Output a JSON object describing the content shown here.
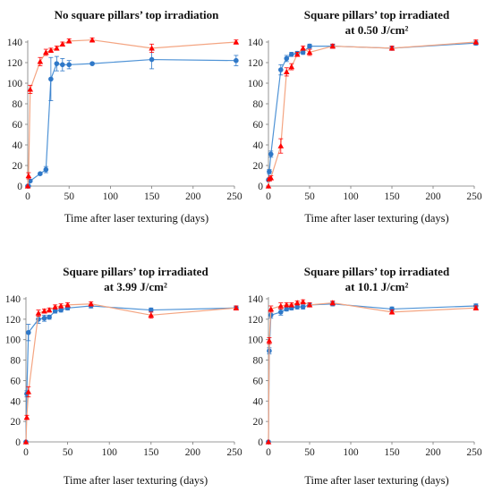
{
  "chart_data": [
    {
      "type": "line",
      "title": "No square pillars’ top irradiation",
      "subtitle": "",
      "xlabel": "Time after laser texturing (days)",
      "ylabel": "",
      "xlim": [
        0,
        250
      ],
      "ylim": [
        0,
        140
      ],
      "xticks": [
        0,
        50,
        100,
        150,
        200,
        250
      ],
      "yticks": [
        0,
        20,
        40,
        60,
        80,
        100,
        120,
        140
      ],
      "grid": false,
      "series": [
        {
          "color": "#2f78c8",
          "marker": "circle",
          "x": [
            0,
            1,
            3,
            15,
            22,
            28,
            35,
            42,
            50,
            78,
            150,
            252
          ],
          "y": [
            0,
            0,
            5,
            12,
            16,
            104,
            119,
            118,
            118,
            119,
            123,
            122
          ],
          "err": [
            0,
            0,
            0,
            0,
            3,
            21,
            7,
            6,
            4,
            1,
            9,
            5
          ]
        },
        {
          "color": "#ff0000",
          "marker": "triangle",
          "x": [
            0,
            1,
            3,
            15,
            22,
            28,
            35,
            42,
            50,
            78,
            150,
            252
          ],
          "y": [
            0,
            10,
            94,
            121,
            130,
            132,
            134,
            138,
            141,
            142,
            134,
            140
          ],
          "err": [
            0,
            3,
            4,
            4,
            3,
            2,
            2,
            2,
            2,
            2,
            4,
            2
          ]
        }
      ]
    },
    {
      "type": "line",
      "title": "Square pillars’ top irradiated",
      "subtitle": "at 0.50 J/cm²",
      "xlabel": "Time after laser texturing (days)",
      "ylabel": "",
      "xlim": [
        0,
        250
      ],
      "ylim": [
        0,
        140
      ],
      "xticks": [
        0,
        50,
        100,
        150,
        200,
        250
      ],
      "yticks": [
        0,
        20,
        40,
        60,
        80,
        100,
        120,
        140
      ],
      "grid": false,
      "series": [
        {
          "color": "#2f78c8",
          "marker": "circle",
          "x": [
            0,
            1,
            3,
            15,
            22,
            28,
            35,
            42,
            50,
            78,
            150,
            252
          ],
          "y": [
            6,
            14,
            31,
            113,
            124,
            128,
            129,
            130,
            136,
            136,
            134,
            139
          ],
          "err": [
            0,
            2,
            3,
            5,
            3,
            2,
            2,
            2,
            2,
            2,
            2,
            2
          ]
        },
        {
          "color": "#ff0000",
          "marker": "triangle",
          "x": [
            0,
            1,
            3,
            15,
            22,
            28,
            35,
            42,
            50,
            78,
            150,
            252
          ],
          "y": [
            0,
            7,
            8,
            39,
            111,
            116,
            128,
            134,
            130,
            136,
            134,
            140
          ],
          "err": [
            0,
            1,
            2,
            7,
            4,
            3,
            2,
            2,
            3,
            2,
            2,
            2
          ]
        }
      ]
    },
    {
      "type": "line",
      "title": "Square pillars’ top irradiated",
      "subtitle": "at 3.99 J/cm²",
      "xlabel": "Time after laser texturing (days)",
      "ylabel": "",
      "xlim": [
        0,
        250
      ],
      "ylim": [
        0,
        140
      ],
      "xticks": [
        0,
        50,
        100,
        150,
        200,
        250
      ],
      "yticks": [
        0,
        20,
        40,
        60,
        80,
        100,
        120,
        140
      ],
      "grid": false,
      "series": [
        {
          "color": "#2f78c8",
          "marker": "circle",
          "x": [
            0,
            1,
            3,
            15,
            22,
            28,
            35,
            42,
            50,
            78,
            150,
            252
          ],
          "y": [
            0,
            47,
            107,
            120,
            121,
            122,
            128,
            129,
            131,
            133,
            129,
            131
          ],
          "err": [
            0,
            3,
            8,
            4,
            3,
            2,
            2,
            2,
            2,
            2,
            2,
            2
          ]
        },
        {
          "color": "#ff0000",
          "marker": "triangle",
          "x": [
            0,
            1,
            3,
            15,
            22,
            28,
            35,
            42,
            50,
            78,
            150,
            252
          ],
          "y": [
            0,
            24,
            49,
            126,
            128,
            129,
            132,
            133,
            134,
            135,
            124,
            131
          ],
          "err": [
            0,
            2,
            5,
            3,
            2,
            2,
            2,
            2,
            2,
            2,
            3,
            2
          ]
        }
      ]
    },
    {
      "type": "line",
      "title": "Square pillars’ top irradiated",
      "subtitle": "at 10.1 J/cm²",
      "xlabel": "Time after laser texturing (days)",
      "ylabel": "",
      "xlim": [
        0,
        250
      ],
      "ylim": [
        0,
        140
      ],
      "xticks": [
        0,
        50,
        100,
        150,
        200,
        250
      ],
      "yticks": [
        0,
        20,
        40,
        60,
        80,
        100,
        120,
        140
      ],
      "grid": false,
      "series": [
        {
          "color": "#2f78c8",
          "marker": "circle",
          "x": [
            0,
            1,
            3,
            15,
            22,
            28,
            35,
            42,
            50,
            78,
            150,
            252
          ],
          "y": [
            0,
            89,
            124,
            127,
            130,
            131,
            132,
            132,
            134,
            135,
            130,
            133
          ],
          "err": [
            0,
            3,
            3,
            3,
            2,
            2,
            2,
            2,
            2,
            2,
            2,
            2
          ]
        },
        {
          "color": "#ff0000",
          "marker": "triangle",
          "x": [
            0,
            1,
            3,
            15,
            22,
            28,
            35,
            42,
            50,
            78,
            150,
            252
          ],
          "y": [
            0,
            99,
            130,
            133,
            134,
            134,
            136,
            137,
            134,
            136,
            127,
            131
          ],
          "err": [
            0,
            3,
            3,
            3,
            2,
            2,
            2,
            2,
            2,
            2,
            2,
            2
          ]
        }
      ]
    }
  ]
}
